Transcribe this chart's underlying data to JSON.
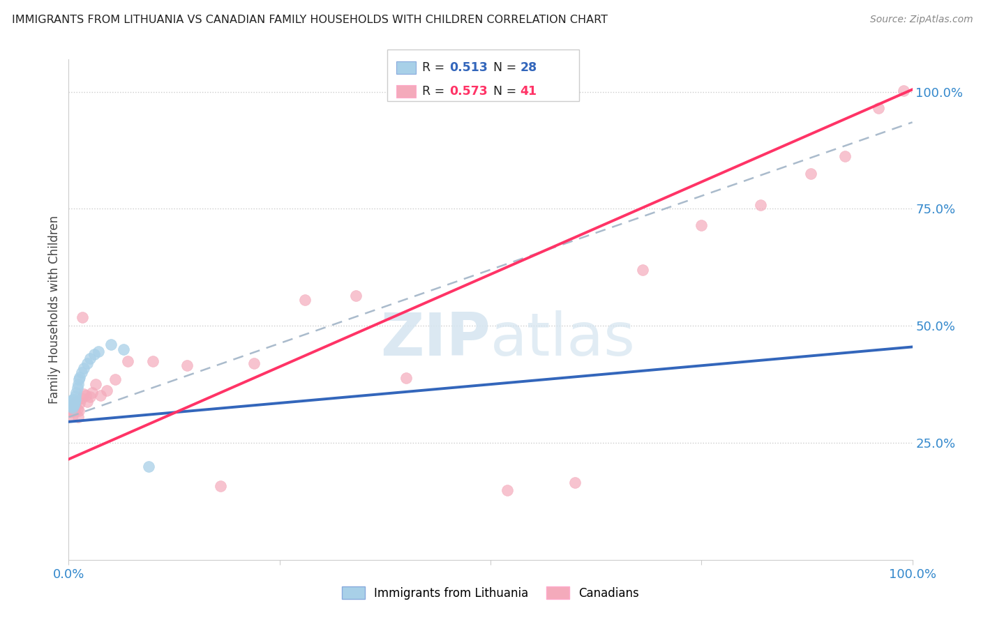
{
  "title": "IMMIGRANTS FROM LITHUANIA VS CANADIAN FAMILY HOUSEHOLDS WITH CHILDREN CORRELATION CHART",
  "source": "Source: ZipAtlas.com",
  "ylabel": "Family Households with Children",
  "legend_labels": [
    "Immigrants from Lithuania",
    "Canadians"
  ],
  "legend_r_blue": "0.513",
  "legend_n_blue": "28",
  "legend_r_pink": "0.573",
  "legend_n_pink": "41",
  "blue_color": "#A8D0E8",
  "pink_color": "#F4AABB",
  "blue_line_color": "#3366BB",
  "pink_line_color": "#FF3366",
  "dashed_line_color": "#AABBCC",
  "watermark_zip": "ZIP",
  "watermark_atlas": "atlas",
  "xlim": [
    0,
    1.0
  ],
  "ylim": [
    0,
    1.07
  ],
  "yticks": [
    0.25,
    0.5,
    0.75,
    1.0
  ],
  "ytick_labels": [
    "25.0%",
    "50.0%",
    "75.0%",
    "100.0%"
  ],
  "xtick_positions": [
    0.0,
    0.25,
    0.5,
    0.75,
    1.0
  ],
  "xtick_labels": [
    "0.0%",
    "",
    "",
    "",
    "100.0%"
  ],
  "background_color": "#FFFFFF",
  "grid_color": "#CCCCCC",
  "blue_x": [
    0.002,
    0.003,
    0.003,
    0.004,
    0.004,
    0.005,
    0.005,
    0.005,
    0.006,
    0.006,
    0.007,
    0.007,
    0.008,
    0.008,
    0.009,
    0.01,
    0.011,
    0.012,
    0.013,
    0.015,
    0.018,
    0.022,
    0.025,
    0.03,
    0.035,
    0.05,
    0.065,
    0.095
  ],
  "blue_y": [
    0.335,
    0.34,
    0.33,
    0.328,
    0.338,
    0.325,
    0.335,
    0.342,
    0.33,
    0.338,
    0.335,
    0.34,
    0.342,
    0.35,
    0.358,
    0.368,
    0.375,
    0.385,
    0.39,
    0.4,
    0.41,
    0.42,
    0.43,
    0.44,
    0.445,
    0.46,
    0.45,
    0.2
  ],
  "pink_x": [
    0.002,
    0.003,
    0.004,
    0.005,
    0.005,
    0.006,
    0.007,
    0.008,
    0.009,
    0.01,
    0.011,
    0.012,
    0.013,
    0.015,
    0.016,
    0.018,
    0.02,
    0.022,
    0.025,
    0.028,
    0.032,
    0.038,
    0.045,
    0.055,
    0.07,
    0.1,
    0.14,
    0.18,
    0.22,
    0.28,
    0.34,
    0.4,
    0.52,
    0.6,
    0.68,
    0.75,
    0.82,
    0.88,
    0.92,
    0.96,
    0.99
  ],
  "pink_y": [
    0.32,
    0.315,
    0.33,
    0.318,
    0.308,
    0.325,
    0.318,
    0.33,
    0.338,
    0.322,
    0.305,
    0.318,
    0.335,
    0.345,
    0.518,
    0.355,
    0.352,
    0.338,
    0.348,
    0.358,
    0.375,
    0.352,
    0.362,
    0.385,
    0.425,
    0.425,
    0.415,
    0.158,
    0.42,
    0.555,
    0.565,
    0.388,
    0.148,
    0.165,
    0.62,
    0.715,
    0.758,
    0.825,
    0.862,
    0.965,
    1.002
  ],
  "blue_line_x0": 0.0,
  "blue_line_y0": 0.295,
  "blue_line_x1": 1.0,
  "blue_line_y1": 0.455,
  "pink_line_x0": 0.0,
  "pink_line_y0": 0.215,
  "pink_line_x1": 1.0,
  "pink_line_y1": 1.005,
  "dash_line_x0": 0.0,
  "dash_line_y0": 0.305,
  "dash_line_x1": 1.0,
  "dash_line_y1": 0.935
}
